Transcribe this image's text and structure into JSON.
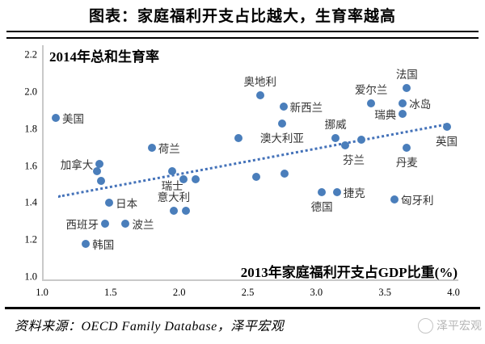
{
  "header": {
    "title": "图表：家庭福利开支占比越大，生育率越高"
  },
  "footer": {
    "source": "资料来源：OECD Family Database，泽平宏观",
    "watermark": "泽平宏观"
  },
  "chart_data": {
    "type": "scatter",
    "title": "家庭福利开支占比越大，生育率越高",
    "xlabel": "2013年家庭福利开支占GDP比重(%)",
    "ylabel": "2014年总和生育率",
    "xlim": [
      1.0,
      4.0
    ],
    "ylim": [
      1.0,
      2.2
    ],
    "x_ticks": [
      "1.0",
      "1.5",
      "2.0",
      "2.5",
      "3.0",
      "3.5",
      "4.0"
    ],
    "y_ticks": [
      "2.2",
      "2.0",
      "1.8",
      "1.6",
      "1.4",
      "1.2",
      "1.0"
    ],
    "grid": false,
    "dot_color": "#4a7ebb",
    "trend_line": {
      "style": "dotted",
      "color": "#4472b9",
      "x1": 1.12,
      "y1": 1.44,
      "x2": 3.95,
      "y2": 1.83
    },
    "points": [
      {
        "x": 1.1,
        "y": 1.86,
        "label": "美国",
        "label_pos": "right"
      },
      {
        "x": 1.42,
        "y": 1.61,
        "label": "加拿大",
        "label_pos": "left"
      },
      {
        "x": 1.4,
        "y": 1.57,
        "label": "",
        "label_pos": "none"
      },
      {
        "x": 1.43,
        "y": 1.52,
        "label": "",
        "label_pos": "none"
      },
      {
        "x": 1.49,
        "y": 1.4,
        "label": "日本",
        "label_pos": "right"
      },
      {
        "x": 1.46,
        "y": 1.29,
        "label": "西班牙",
        "label_pos": "left"
      },
      {
        "x": 1.61,
        "y": 1.29,
        "label": "波兰",
        "label_pos": "right"
      },
      {
        "x": 1.32,
        "y": 1.18,
        "label": "韩国",
        "label_pos": "right"
      },
      {
        "x": 1.8,
        "y": 1.7,
        "label": "荷兰",
        "label_pos": "right"
      },
      {
        "x": 1.95,
        "y": 1.57,
        "label": "瑞士",
        "label_pos": "below"
      },
      {
        "x": 2.03,
        "y": 1.53,
        "label": "",
        "label_pos": "none"
      },
      {
        "x": 2.12,
        "y": 1.53,
        "label": "",
        "label_pos": "none"
      },
      {
        "x": 1.96,
        "y": 1.36,
        "label": "意大利",
        "label_pos": "above"
      },
      {
        "x": 2.05,
        "y": 1.36,
        "label": "",
        "label_pos": "none"
      },
      {
        "x": 2.43,
        "y": 1.75,
        "label": "",
        "label_pos": "none"
      },
      {
        "x": 2.59,
        "y": 1.98,
        "label": "奥地利",
        "label_pos": "above"
      },
      {
        "x": 2.76,
        "y": 1.92,
        "label": "新西兰",
        "label_pos": "right"
      },
      {
        "x": 2.75,
        "y": 1.83,
        "label": "澳大利亚",
        "label_pos": "below"
      },
      {
        "x": 2.56,
        "y": 1.54,
        "label": "",
        "label_pos": "none"
      },
      {
        "x": 2.77,
        "y": 1.56,
        "label": "",
        "label_pos": "none"
      },
      {
        "x": 3.14,
        "y": 1.75,
        "label": "挪威",
        "label_pos": "above"
      },
      {
        "x": 3.21,
        "y": 1.71,
        "label": "芬兰",
        "label_pos": "below-right"
      },
      {
        "x": 3.33,
        "y": 1.74,
        "label": "",
        "label_pos": "none"
      },
      {
        "x": 3.04,
        "y": 1.46,
        "label": "德国",
        "label_pos": "below"
      },
      {
        "x": 3.15,
        "y": 1.46,
        "label": "捷克",
        "label_pos": "right"
      },
      {
        "x": 3.57,
        "y": 1.42,
        "label": "匈牙利",
        "label_pos": "right"
      },
      {
        "x": 3.4,
        "y": 1.94,
        "label": "爱尔兰",
        "label_pos": "above"
      },
      {
        "x": 3.66,
        "y": 2.02,
        "label": "法国",
        "label_pos": "above"
      },
      {
        "x": 3.63,
        "y": 1.94,
        "label": "冰岛",
        "label_pos": "right"
      },
      {
        "x": 3.63,
        "y": 1.88,
        "label": "瑞典",
        "label_pos": "left"
      },
      {
        "x": 3.66,
        "y": 1.7,
        "label": "丹麦",
        "label_pos": "below"
      },
      {
        "x": 3.95,
        "y": 1.81,
        "label": "英国",
        "label_pos": "below"
      }
    ]
  }
}
